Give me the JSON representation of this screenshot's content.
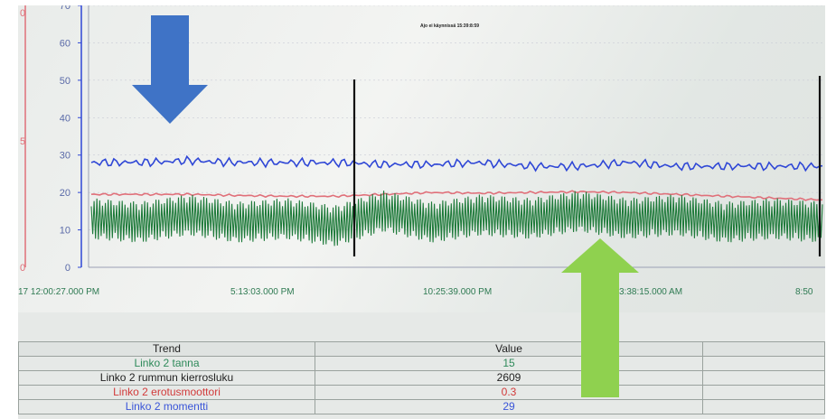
{
  "chart": {
    "title": "Ajo ei käynnissä 15:39:8:59",
    "left_axis_ticks": [
      "0",
      "10",
      "20",
      "30",
      "40",
      "50",
      "60",
      "70"
    ],
    "left_axis_red_ticks": [
      "0",
      "5",
      "0"
    ],
    "x_axis_labels": [
      "17 12:00:27.000 PM",
      "5:13:03.000 PM",
      "10:25:39.000 PM",
      "3:38:15.000 AM",
      "8:50"
    ],
    "colors": {
      "blue": "#2f47d6",
      "red": "#e0707a",
      "green": "#1e7a3a",
      "grid": "#c9ccd6"
    }
  },
  "chart_data": {
    "type": "line",
    "ylim": [
      0,
      70
    ],
    "series": [
      {
        "name": "Linko 2 momentti",
        "color": "#2f47d6",
        "values": [
          28,
          28,
          28.5,
          28,
          28,
          28,
          27.5,
          27.5,
          28,
          27,
          27,
          28,
          27,
          27,
          27,
          27
        ]
      },
      {
        "name": "Linko 2 erotusmoottori",
        "color": "#e0707a",
        "values": [
          19.5,
          19.5,
          19.5,
          19.2,
          19,
          19,
          19.5,
          20,
          19.8,
          20,
          20.2,
          20,
          19.5,
          19,
          18.5,
          18
        ]
      },
      {
        "name": "Linko 2 tanna",
        "color": "#1e7a3a",
        "values": [
          13,
          12,
          14,
          12,
          13,
          11,
          15,
          12,
          14,
          13,
          15,
          13,
          14,
          12,
          13,
          12
        ]
      }
    ]
  },
  "table": {
    "headers": [
      "Trend",
      "Value",
      ""
    ],
    "rows": [
      {
        "name": "Linko 2 tanna",
        "value": "15",
        "color": "#2e8a5a",
        "value_color": "#2e8a5a"
      },
      {
        "name": "Linko 2 rummun kierrosluku",
        "value": "2609",
        "color": "#222222",
        "value_color": "#222222"
      },
      {
        "name": "Linko 2 erotusmoottori",
        "value": "0.3",
        "color": "#d23a3a",
        "value_color": "#d23a3a"
      },
      {
        "name": "Linko 2 momentti",
        "value": "29",
        "color": "#3a55d8",
        "value_color": "#3a55d8"
      }
    ]
  },
  "annotations": {
    "down_arrow_color": "#3f73c6",
    "up_arrow_color": "#8fd14f"
  }
}
